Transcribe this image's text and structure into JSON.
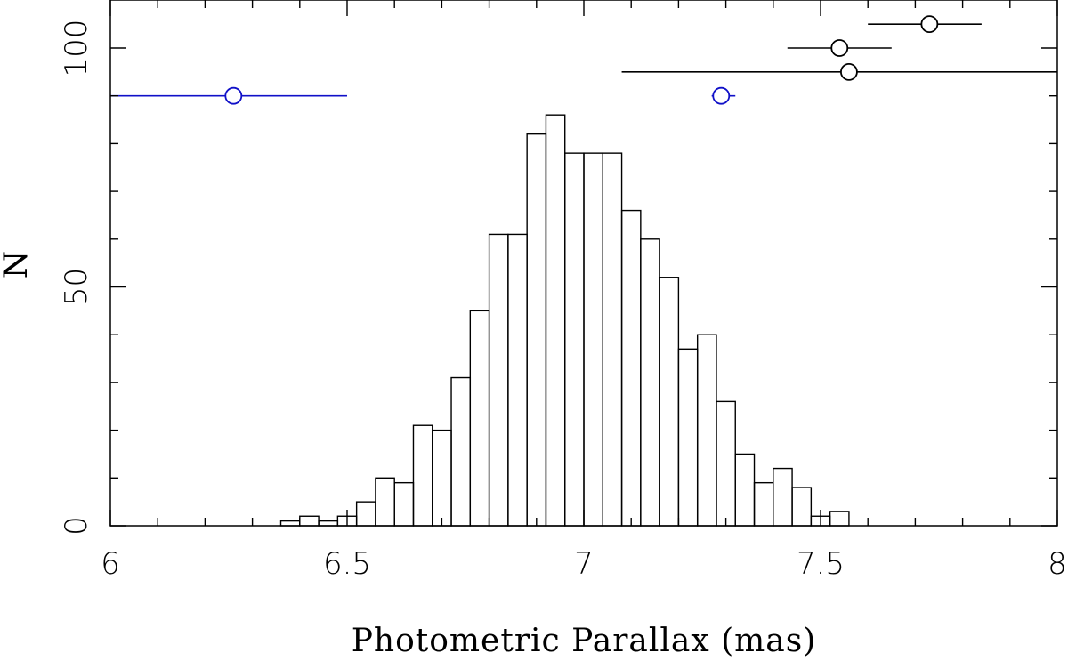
{
  "chart_data": {
    "type": "bar",
    "xlabel": "Photometric Parallax (mas)",
    "ylabel": "N",
    "xlim": [
      6,
      8
    ],
    "ylim": [
      0,
      105
    ],
    "x_ticks": [
      6,
      6.5,
      7,
      7.5,
      8
    ],
    "x_tick_labels": [
      "6",
      "6.5",
      "7",
      "7.5",
      "8"
    ],
    "y_ticks": [
      0,
      50,
      100
    ],
    "y_tick_labels": [
      "0",
      "50",
      "100"
    ],
    "grid": false,
    "legend": "none",
    "histogram": {
      "bin_width": 0.04,
      "bin_starts": [
        6.36,
        6.4,
        6.44,
        6.48,
        6.52,
        6.56,
        6.6,
        6.64,
        6.68,
        6.72,
        6.76,
        6.8,
        6.84,
        6.88,
        6.92,
        6.96,
        7.0,
        7.04,
        7.08,
        7.12,
        7.16,
        7.2,
        7.24,
        7.28,
        7.32,
        7.36,
        7.4,
        7.44,
        7.48,
        7.52
      ],
      "counts": [
        1,
        2,
        1,
        2,
        5,
        10,
        9,
        21,
        20,
        31,
        45,
        61,
        61,
        82,
        86,
        78,
        78,
        78,
        66,
        60,
        52,
        37,
        40,
        26,
        15,
        9,
        12,
        8,
        2,
        3
      ]
    },
    "points": [
      {
        "x": 6.26,
        "y": 90,
        "xerr_low": 6.0,
        "xerr_high": 6.5,
        "color": "#1010c8"
      },
      {
        "x": 7.29,
        "y": 90,
        "xerr_low": 7.27,
        "xerr_high": 7.32,
        "color": "#1010c8"
      },
      {
        "x": 7.54,
        "y": 100,
        "xerr_low": 7.43,
        "xerr_high": 7.65,
        "color": "#000000"
      },
      {
        "x": 7.56,
        "y": 95,
        "xerr_low": 7.08,
        "xerr_high": 8.0,
        "color": "#000000"
      },
      {
        "x": 7.73,
        "y": 105,
        "xerr_low": 7.6,
        "xerr_high": 7.84,
        "color": "#000000"
      }
    ]
  }
}
